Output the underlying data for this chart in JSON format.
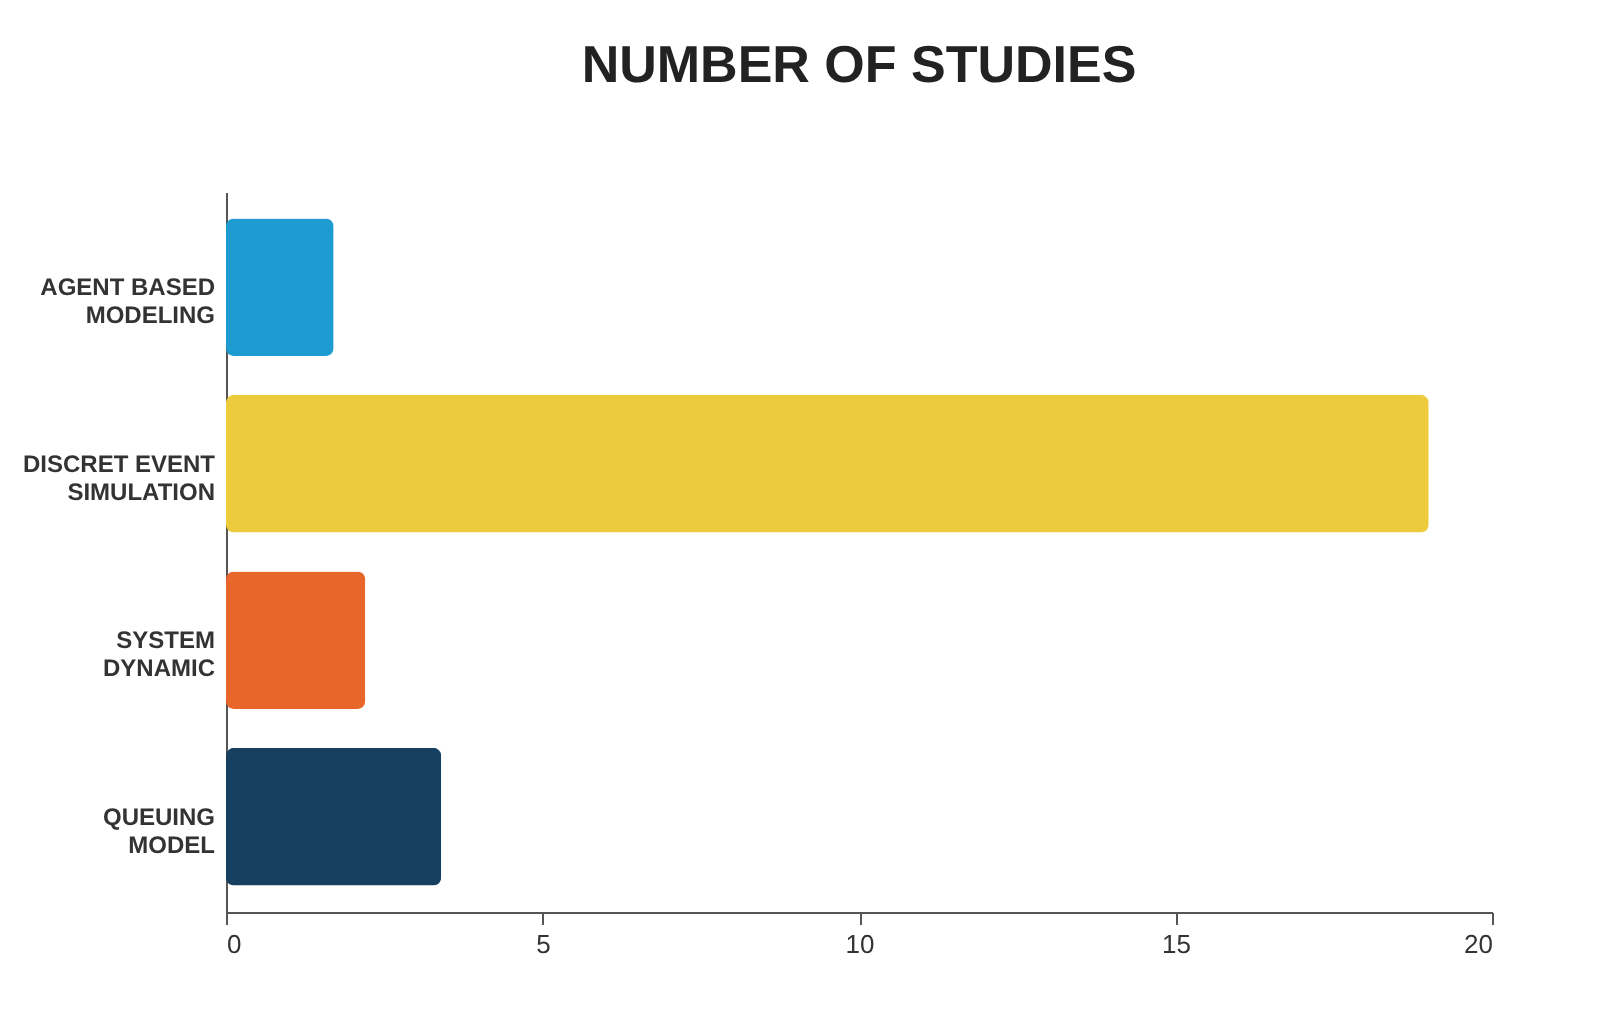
{
  "chart_data": {
    "type": "bar",
    "title": "NUMBER OF STUDIES",
    "orientation": "horizontal",
    "categories": [
      "AGENT BASED MODELING",
      "DISCRET EVENT SIMULATION",
      "SYSTEM DYNAMIC",
      "QUEUING MODEL"
    ],
    "values": [
      1.7,
      19,
      2.2,
      3.4
    ],
    "colors": [
      "#1e9bd0",
      "#eccb3c",
      "#e8662a",
      "#173f5f"
    ],
    "xlim": [
      0,
      20
    ],
    "xticks": [
      0,
      5,
      10,
      15,
      20
    ],
    "grid": false
  }
}
